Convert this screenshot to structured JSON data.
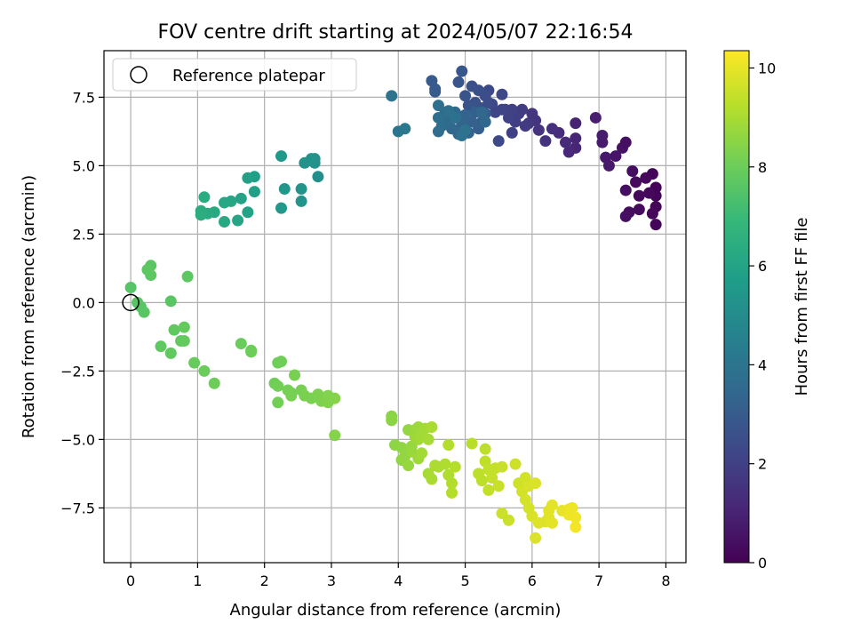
{
  "chart_data": {
    "type": "scatter",
    "title": "FOV centre drift starting at 2024/05/07 22:16:54",
    "xlabel": "Angular distance from reference (arcmin)",
    "ylabel": "Rotation from reference (arcmin)",
    "xlim": [
      -0.4,
      8.3
    ],
    "ylim": [
      -9.5,
      9.2
    ],
    "xticks": [
      0,
      1,
      2,
      3,
      4,
      5,
      6,
      7,
      8
    ],
    "xtick_labels": [
      "0",
      "1",
      "2",
      "3",
      "4",
      "5",
      "6",
      "7",
      "8"
    ],
    "yticks": [
      -7.5,
      -5.0,
      -2.5,
      0.0,
      2.5,
      5.0,
      7.5
    ],
    "ytick_labels": [
      "−7.5",
      "−5.0",
      "−2.5",
      "0.0",
      "2.5",
      "5.0",
      "7.5"
    ],
    "grid": true,
    "legend": {
      "placement": "upper-left",
      "entries": [
        "Reference platepar"
      ]
    },
    "reference_point": {
      "x": 0,
      "y": 0
    },
    "colorbar": {
      "label": "Hours from first FF file",
      "range": [
        0,
        10.35
      ],
      "ticks": [
        0,
        2,
        4,
        6,
        8,
        10
      ],
      "tick_labels": [
        "0",
        "2",
        "4",
        "6",
        "8",
        "10"
      ],
      "colormap": [
        "#440154",
        "#482878",
        "#3e4989",
        "#31688e",
        "#26828e",
        "#1f9e89",
        "#35b779",
        "#6ece58",
        "#b5de2b",
        "#fde725"
      ]
    },
    "points": [
      [
        7.85,
        2.85,
        0.1
      ],
      [
        7.85,
        3.5,
        0.1
      ],
      [
        7.8,
        3.25,
        0.15
      ],
      [
        7.85,
        3.9,
        0.1
      ],
      [
        7.85,
        4.2,
        0.05
      ],
      [
        7.75,
        4.0,
        0.2
      ],
      [
        7.8,
        4.7,
        0.1
      ],
      [
        7.7,
        4.55,
        0.2
      ],
      [
        7.6,
        3.9,
        0.25
      ],
      [
        7.6,
        3.4,
        0.3
      ],
      [
        7.55,
        4.4,
        0.3
      ],
      [
        7.5,
        4.8,
        0.35
      ],
      [
        7.45,
        3.3,
        0.35
      ],
      [
        7.4,
        4.1,
        0.4
      ],
      [
        7.4,
        3.15,
        0.45
      ],
      [
        7.35,
        5.65,
        0.5
      ],
      [
        7.4,
        5.85,
        0.45
      ],
      [
        7.25,
        5.35,
        0.6
      ],
      [
        7.15,
        5.0,
        0.7
      ],
      [
        7.1,
        5.3,
        0.7
      ],
      [
        7.05,
        5.85,
        0.75
      ],
      [
        7.05,
        6.1,
        0.8
      ],
      [
        6.95,
        6.75,
        0.9
      ],
      [
        6.65,
        6.55,
        1.0
      ],
      [
        6.65,
        5.65,
        1.1
      ],
      [
        6.65,
        6.0,
        1.1
      ],
      [
        6.55,
        5.5,
        1.2
      ],
      [
        6.5,
        5.85,
        1.25
      ],
      [
        6.4,
        6.2,
        1.3
      ],
      [
        6.3,
        6.35,
        1.4
      ],
      [
        6.2,
        5.9,
        1.5
      ],
      [
        6.1,
        6.3,
        1.55
      ],
      [
        6.05,
        6.65,
        1.6
      ],
      [
        6.0,
        6.9,
        1.65
      ],
      [
        5.95,
        6.55,
        1.75
      ],
      [
        5.9,
        6.45,
        1.8
      ],
      [
        5.85,
        7.05,
        1.85
      ],
      [
        5.8,
        6.9,
        1.9
      ],
      [
        5.75,
        6.6,
        1.95
      ],
      [
        5.7,
        6.2,
        2.0
      ],
      [
        5.7,
        7.05,
        2.0
      ],
      [
        5.65,
        6.75,
        2.05
      ],
      [
        5.6,
        7.05,
        2.1
      ],
      [
        5.55,
        7.05,
        2.15
      ],
      [
        5.45,
        6.95,
        2.2
      ],
      [
        5.4,
        7.25,
        2.25
      ],
      [
        5.55,
        7.6,
        2.25
      ],
      [
        5.5,
        5.9,
        2.3
      ],
      [
        5.35,
        7.75,
        2.35
      ],
      [
        5.35,
        7.3,
        2.4
      ],
      [
        5.3,
        7.55,
        2.45
      ],
      [
        5.25,
        7.1,
        2.5
      ],
      [
        5.2,
        7.75,
        2.55
      ],
      [
        5.15,
        7.3,
        2.6
      ],
      [
        5.1,
        7.9,
        2.6
      ],
      [
        5.05,
        7.2,
        2.7
      ],
      [
        5.0,
        7.55,
        2.7
      ],
      [
        4.9,
        8.05,
        2.8
      ],
      [
        4.95,
        8.45,
        2.85
      ],
      [
        4.55,
        7.7,
        2.9
      ],
      [
        4.5,
        8.1,
        2.95
      ],
      [
        4.55,
        7.8,
        2.95
      ],
      [
        5.3,
        6.9,
        3.0
      ],
      [
        5.25,
        6.6,
        3.05
      ],
      [
        5.2,
        6.35,
        3.1
      ],
      [
        5.15,
        6.95,
        3.15
      ],
      [
        5.1,
        6.6,
        3.2
      ],
      [
        5.05,
        6.2,
        3.25
      ],
      [
        5.0,
        6.85,
        3.3
      ],
      [
        4.95,
        6.5,
        3.35
      ],
      [
        4.9,
        6.15,
        3.4
      ],
      [
        4.85,
        6.95,
        3.45
      ],
      [
        4.8,
        6.35,
        3.5
      ],
      [
        4.75,
        6.65,
        3.55
      ],
      [
        4.7,
        6.95,
        3.6
      ],
      [
        4.65,
        6.45,
        3.65
      ],
      [
        4.6,
        6.25,
        3.7
      ],
      [
        4.6,
        6.75,
        3.75
      ],
      [
        4.6,
        7.2,
        3.8
      ],
      [
        4.75,
        7.0,
        3.8
      ],
      [
        4.85,
        6.75,
        3.85
      ],
      [
        4.95,
        6.1,
        3.9
      ],
      [
        5.0,
        6.3,
        3.9
      ],
      [
        5.3,
        6.6,
        3.5
      ],
      [
        5.25,
        6.95,
        3.4
      ],
      [
        3.9,
        7.55,
        4.0
      ],
      [
        4.0,
        6.25,
        4.05
      ],
      [
        4.1,
        6.35,
        4.1
      ],
      [
        2.75,
        5.25,
        5.1
      ],
      [
        2.8,
        4.6,
        5.15
      ],
      [
        2.75,
        5.1,
        5.2
      ],
      [
        2.7,
        5.25,
        5.25
      ],
      [
        2.6,
        5.1,
        5.3
      ],
      [
        2.55,
        3.7,
        5.35
      ],
      [
        2.55,
        4.15,
        5.4
      ],
      [
        2.3,
        4.15,
        5.45
      ],
      [
        2.25,
        3.45,
        5.5
      ],
      [
        2.25,
        5.35,
        5.55
      ],
      [
        1.85,
        4.6,
        5.8
      ],
      [
        1.85,
        4.05,
        5.85
      ],
      [
        1.75,
        4.55,
        5.9
      ],
      [
        1.75,
        3.3,
        5.95
      ],
      [
        1.65,
        3.8,
        6.0
      ],
      [
        1.6,
        3.0,
        6.05
      ],
      [
        1.5,
        3.7,
        6.1
      ],
      [
        1.4,
        3.65,
        6.15
      ],
      [
        1.4,
        2.95,
        6.2
      ],
      [
        1.25,
        3.3,
        6.25
      ],
      [
        1.15,
        3.25,
        6.3
      ],
      [
        1.1,
        3.85,
        6.35
      ],
      [
        1.05,
        3.35,
        6.4
      ],
      [
        1.05,
        3.2,
        6.45
      ],
      [
        0.0,
        0.55,
        7.55
      ],
      [
        0.1,
        0.0,
        7.6
      ],
      [
        0.15,
        -0.15,
        7.6
      ],
      [
        0.2,
        -0.35,
        7.65
      ],
      [
        0.3,
        1.35,
        7.65
      ],
      [
        0.3,
        1.0,
        7.7
      ],
      [
        0.25,
        1.2,
        7.7
      ],
      [
        0.6,
        0.05,
        7.65
      ],
      [
        0.85,
        0.95,
        7.7
      ],
      [
        0.45,
        -1.6,
        7.75
      ],
      [
        0.6,
        -1.85,
        7.8
      ],
      [
        0.65,
        -1.0,
        7.75
      ],
      [
        0.75,
        -1.4,
        7.8
      ],
      [
        0.8,
        -1.4,
        7.85
      ],
      [
        0.8,
        -0.9,
        7.85
      ],
      [
        0.95,
        -2.2,
        7.9
      ],
      [
        1.1,
        -2.5,
        7.95
      ],
      [
        1.25,
        -2.95,
        8.0
      ],
      [
        1.65,
        -1.5,
        7.95
      ],
      [
        1.8,
        -1.8,
        8.0
      ],
      [
        1.8,
        -1.75,
        8.0
      ],
      [
        2.15,
        -2.95,
        8.05
      ],
      [
        2.2,
        -2.2,
        8.05
      ],
      [
        2.25,
        -2.15,
        8.05
      ],
      [
        2.2,
        -3.05,
        8.1
      ],
      [
        2.2,
        -3.65,
        8.1
      ],
      [
        2.35,
        -3.2,
        8.15
      ],
      [
        2.4,
        -3.3,
        8.15
      ],
      [
        2.4,
        -3.4,
        8.2
      ],
      [
        2.45,
        -2.65,
        8.2
      ],
      [
        2.55,
        -3.2,
        8.2
      ],
      [
        2.6,
        -3.4,
        8.25
      ],
      [
        2.7,
        -3.5,
        8.25
      ],
      [
        2.8,
        -3.35,
        8.3
      ],
      [
        2.85,
        -3.6,
        8.3
      ],
      [
        2.95,
        -3.4,
        8.35
      ],
      [
        2.95,
        -3.65,
        8.35
      ],
      [
        3.05,
        -3.5,
        8.4
      ],
      [
        3.05,
        -4.85,
        8.4
      ],
      [
        3.9,
        -4.3,
        8.5
      ],
      [
        3.9,
        -4.15,
        8.5
      ],
      [
        3.95,
        -5.2,
        8.55
      ],
      [
        4.05,
        -5.3,
        8.6
      ],
      [
        4.05,
        -5.75,
        8.6
      ],
      [
        4.1,
        -5.6,
        8.65
      ],
      [
        4.15,
        -4.65,
        8.65
      ],
      [
        4.15,
        -5.95,
        8.7
      ],
      [
        4.2,
        -5.25,
        8.7
      ],
      [
        4.2,
        -5.45,
        8.75
      ],
      [
        4.25,
        -4.65,
        8.75
      ],
      [
        4.25,
        -4.9,
        8.8
      ],
      [
        4.3,
        -4.55,
        8.8
      ],
      [
        4.3,
        -5.7,
        8.85
      ],
      [
        4.3,
        -5.0,
        8.85
      ],
      [
        4.35,
        -5.5,
        8.9
      ],
      [
        4.35,
        -4.9,
        8.9
      ],
      [
        4.4,
        -4.6,
        8.9
      ],
      [
        4.45,
        -5.0,
        8.95
      ],
      [
        4.45,
        -6.25,
        8.95
      ],
      [
        4.5,
        -6.45,
        9.0
      ],
      [
        4.5,
        -4.55,
        9.0
      ],
      [
        4.55,
        -5.95,
        9.05
      ],
      [
        4.6,
        -6.0,
        9.05
      ],
      [
        4.7,
        -5.9,
        9.1
      ],
      [
        4.75,
        -6.3,
        9.1
      ],
      [
        4.75,
        -5.2,
        9.15
      ],
      [
        4.8,
        -6.6,
        9.15
      ],
      [
        4.8,
        -6.95,
        9.2
      ],
      [
        4.85,
        -6.0,
        9.2
      ],
      [
        5.1,
        -5.15,
        9.25
      ],
      [
        5.2,
        -6.25,
        9.3
      ],
      [
        5.25,
        -6.5,
        9.3
      ],
      [
        5.3,
        -5.35,
        9.35
      ],
      [
        5.3,
        -5.8,
        9.35
      ],
      [
        5.35,
        -6.1,
        9.4
      ],
      [
        5.35,
        -6.85,
        9.4
      ],
      [
        5.4,
        -6.4,
        9.45
      ],
      [
        5.45,
        -6.05,
        9.45
      ],
      [
        5.5,
        -6.7,
        9.5
      ],
      [
        5.55,
        -6.0,
        9.5
      ],
      [
        5.55,
        -7.7,
        9.55
      ],
      [
        5.65,
        -7.95,
        9.55
      ],
      [
        5.75,
        -5.9,
        9.6
      ],
      [
        5.8,
        -6.6,
        9.6
      ],
      [
        5.85,
        -6.9,
        9.65
      ],
      [
        5.9,
        -6.4,
        9.65
      ],
      [
        5.9,
        -7.2,
        9.7
      ],
      [
        5.95,
        -7.5,
        9.7
      ],
      [
        5.95,
        -6.7,
        9.75
      ],
      [
        6.0,
        -7.8,
        9.75
      ],
      [
        6.05,
        -8.6,
        9.8
      ],
      [
        6.05,
        -6.6,
        9.8
      ],
      [
        6.1,
        -8.05,
        9.85
      ],
      [
        6.2,
        -8.0,
        9.85
      ],
      [
        6.25,
        -7.85,
        9.9
      ],
      [
        6.25,
        -7.6,
        9.9
      ],
      [
        6.3,
        -8.05,
        9.95
      ],
      [
        6.3,
        -7.4,
        9.95
      ],
      [
        6.45,
        -7.6,
        10.0
      ],
      [
        6.55,
        -7.55,
        10.05
      ],
      [
        6.55,
        -7.75,
        10.1
      ],
      [
        6.6,
        -7.5,
        10.1
      ],
      [
        6.65,
        -8.2,
        10.2
      ],
      [
        6.65,
        -7.85,
        10.15
      ]
    ]
  }
}
